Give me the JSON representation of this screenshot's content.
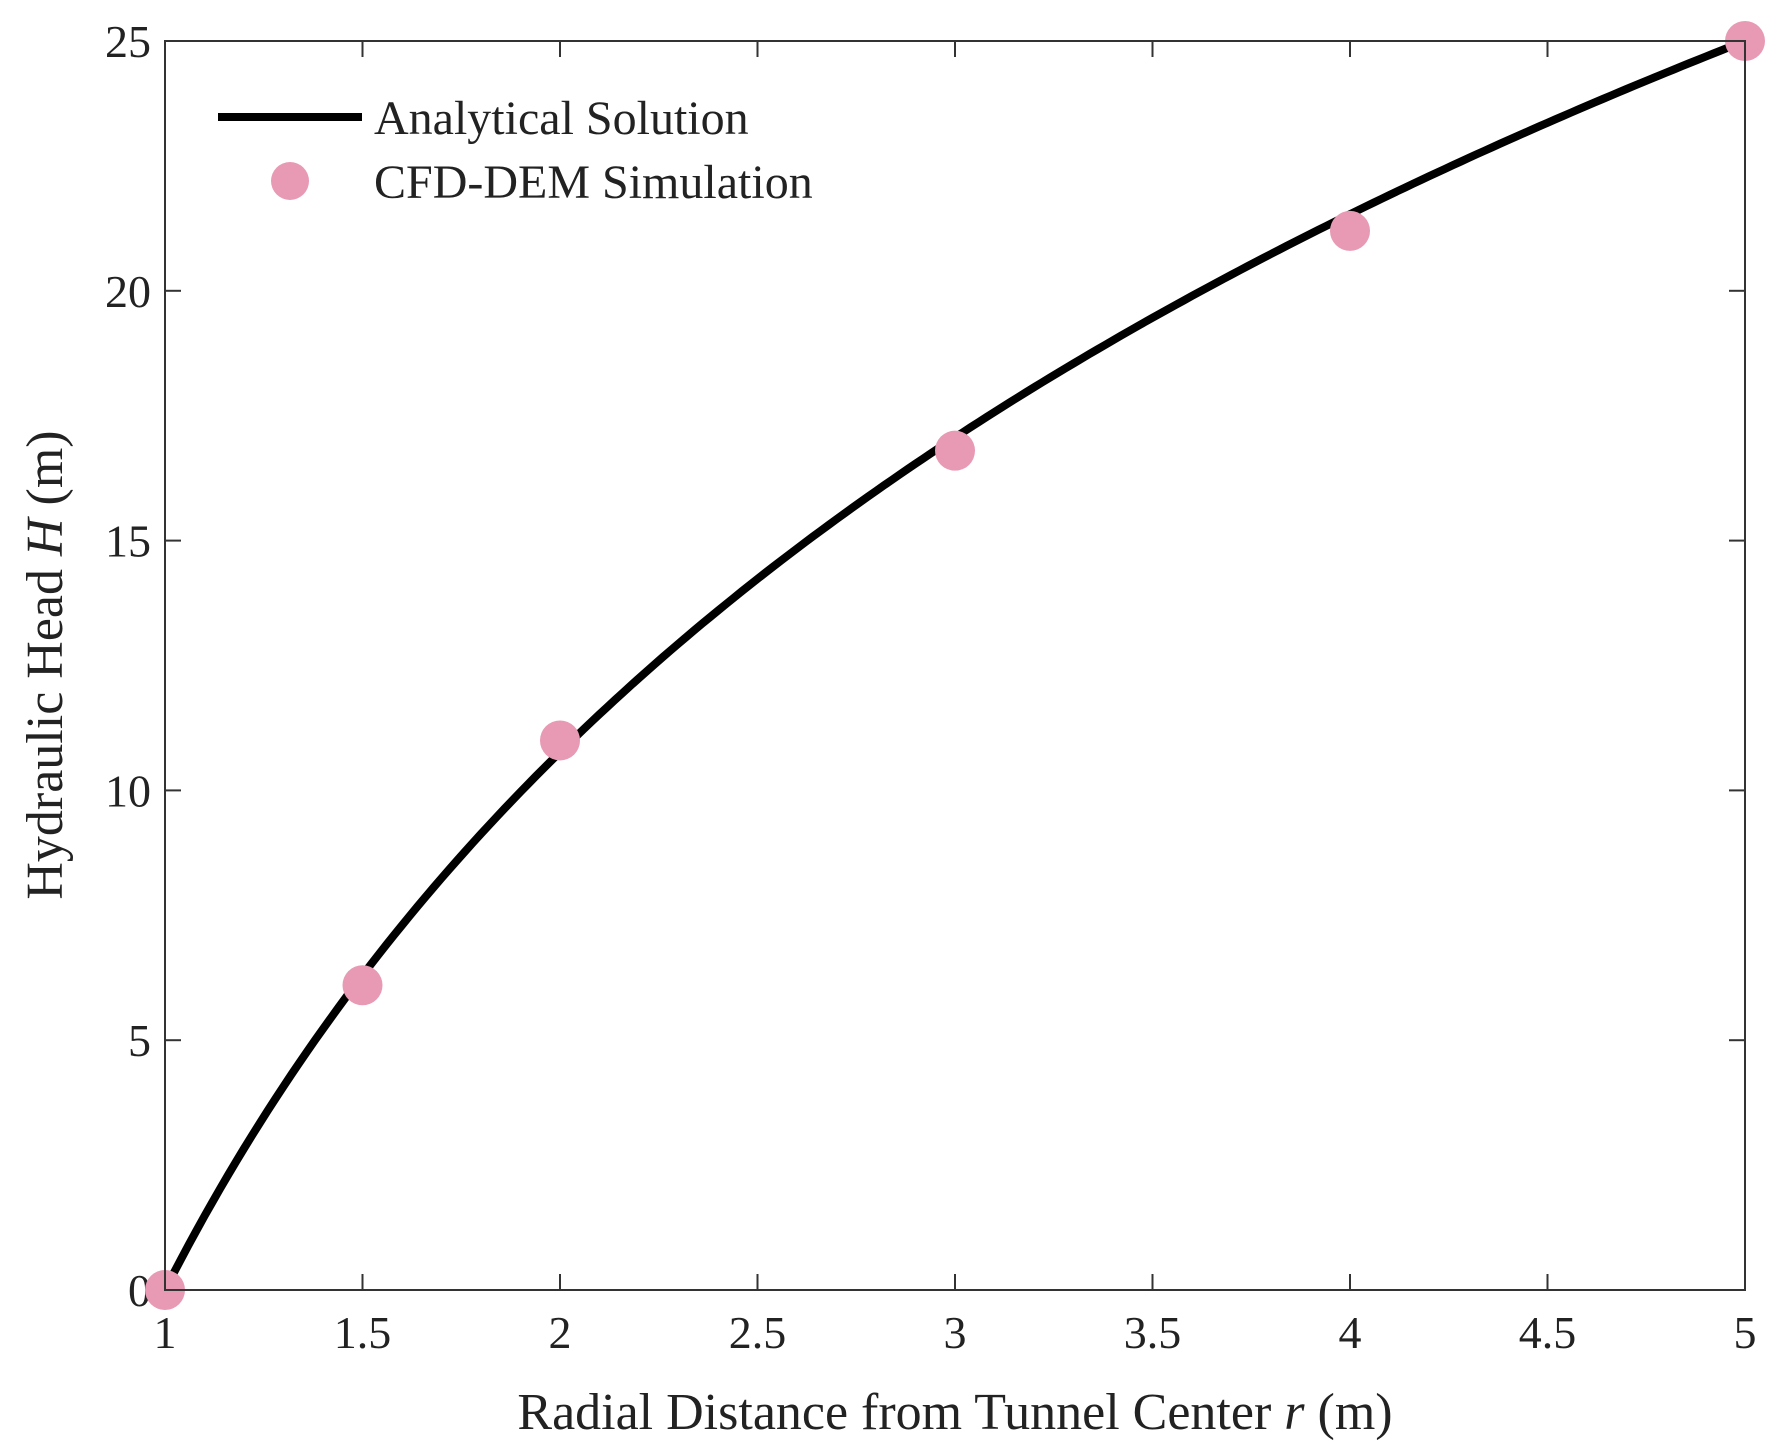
{
  "chart_data": {
    "type": "line",
    "title": "",
    "xlabel": "Radial Distance from Tunnel Center",
    "xlabel_var": "r",
    "xlabel_unit": "(m)",
    "ylabel": "Hydraulic Head",
    "ylabel_var": "H",
    "ylabel_unit": "(m)",
    "xlim": [
      1,
      5
    ],
    "ylim": [
      0,
      25
    ],
    "xticks": [
      1,
      1.5,
      2,
      2.5,
      3,
      3.5,
      4,
      4.5,
      5
    ],
    "xtick_labels": [
      "1",
      "1.5",
      "2",
      "2.5",
      "3",
      "3.5",
      "4",
      "4.5",
      "5"
    ],
    "yticks": [
      0,
      5,
      10,
      15,
      20,
      25
    ],
    "ytick_labels": [
      "0",
      "5",
      "10",
      "15",
      "20",
      "25"
    ],
    "grid": false,
    "legend_placement": "top-left",
    "series": [
      {
        "name": "Analytical Solution",
        "kind": "line",
        "color": "#000000",
        "function": "H = 25 ln(r) / ln(5)"
      },
      {
        "name": "CFD-DEM Simulation",
        "kind": "scatter",
        "color": "#e899b4",
        "x": [
          1,
          1.5,
          2,
          3,
          4,
          5
        ],
        "y": [
          0,
          6.1,
          11.0,
          16.8,
          21.2,
          25
        ]
      }
    ]
  }
}
